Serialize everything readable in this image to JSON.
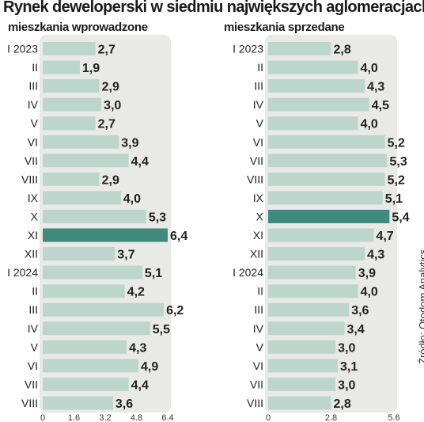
{
  "title": "Rynek deweloperski w siedmiu największych aglomeracjach",
  "source": "Źródło: Otodom Analytics",
  "colors": {
    "panel_bg": "#e9e9e8",
    "bar": "#bcd6cd",
    "bar_highlight": "#3f8a7c",
    "text": "#222222"
  },
  "chart_data": [
    {
      "type": "bar",
      "orientation": "horizontal",
      "subtitle": "mieszkania wprowadzone",
      "categories": [
        "I 2023",
        "II",
        "III",
        "IV",
        "V",
        "VI",
        "VII",
        "VIII",
        "IX",
        "X",
        "XI",
        "XII",
        "I 2024",
        "II",
        "III",
        "IV",
        "V",
        "VI",
        "VII",
        "VIII"
      ],
      "values": [
        2.7,
        1.9,
        2.9,
        3.0,
        2.7,
        3.9,
        4.4,
        2.9,
        4.0,
        5.3,
        6.4,
        3.7,
        5.1,
        4.2,
        6.2,
        5.5,
        4.3,
        4.9,
        4.4,
        3.6
      ],
      "value_labels": [
        "2,7",
        "1,9",
        "2,9",
        "3,0",
        "2,7",
        "3,9",
        "4,4",
        "2,9",
        "4,0",
        "5,3",
        "6,4",
        "3,7",
        "5,1",
        "4,2",
        "6,2",
        "5,5",
        "4,3",
        "4,9",
        "4,4",
        "3,6"
      ],
      "highlight_index": 10,
      "xlim": [
        0,
        6.4
      ],
      "ticks": [
        0,
        1.6,
        3.2,
        4.8,
        6.4
      ],
      "tick_labels": [
        "0",
        "1.6",
        "3.2",
        "4.8",
        "6.4"
      ]
    },
    {
      "type": "bar",
      "orientation": "horizontal",
      "subtitle": "mieszkania sprzedane",
      "categories": [
        "I 2023",
        "II",
        "III",
        "IV",
        "V",
        "VI",
        "VII",
        "VIII",
        "IX",
        "X",
        "XI",
        "XII",
        "I 2024",
        "II",
        "III",
        "IV",
        "V",
        "VI",
        "VII",
        "VIII"
      ],
      "values": [
        2.8,
        4.0,
        4.3,
        4.5,
        4.0,
        5.2,
        5.3,
        5.2,
        5.1,
        5.4,
        4.7,
        4.3,
        3.9,
        4.0,
        3.6,
        3.4,
        3.0,
        3.1,
        3.0,
        2.8
      ],
      "value_labels": [
        "2,8",
        "4,0",
        "4,3",
        "4,5",
        "4,0",
        "5,2",
        "5,3",
        "5,2",
        "5,1",
        "5,4",
        "4,7",
        "4,3",
        "3,9",
        "4,0",
        "3,6",
        "3,4",
        "3,0",
        "3,1",
        "3,0",
        "2,8"
      ],
      "highlight_index": 9,
      "xlim": [
        0,
        5.6
      ],
      "ticks": [
        0,
        2.8,
        5.6
      ],
      "tick_labels": [
        "0",
        "2.8",
        "5.6"
      ]
    }
  ]
}
